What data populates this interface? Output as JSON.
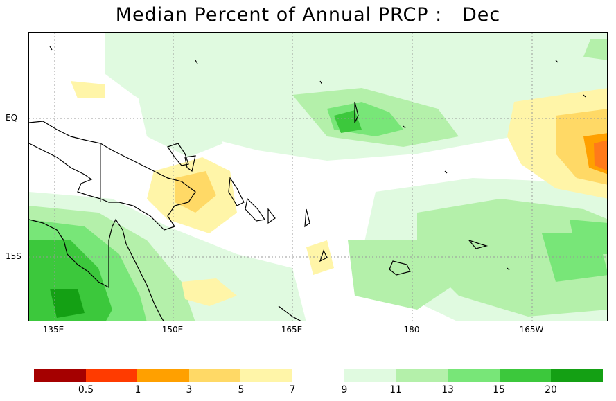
{
  "title": "Median Percent of Annual PRCP :   Dec",
  "map": {
    "lon_labels": [
      "135E",
      "150E",
      "165E",
      "180",
      "165W"
    ],
    "lat_labels": [
      "EQ",
      "15S"
    ],
    "colors": {
      "grid": "#999999",
      "coast": "#000000",
      "neutral": "#ffffff"
    }
  },
  "colorbar": {
    "dry": {
      "colors": [
        "#a50000",
        "#ff3b00",
        "#ffa000",
        "#ffd966",
        "#fff5a8"
      ],
      "labels": [
        "0.5",
        "1",
        "3",
        "5",
        "7"
      ]
    },
    "wet": {
      "colors": [
        "#e0fae0",
        "#b4f0aa",
        "#78e678",
        "#3cc83c",
        "#14a014"
      ],
      "labels": [
        "9",
        "11",
        "13",
        "15",
        "20"
      ]
    }
  }
}
